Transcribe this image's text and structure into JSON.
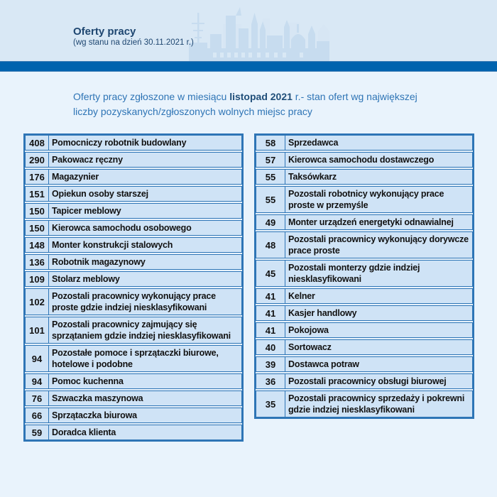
{
  "header": {
    "title": "Oferty pracy",
    "date_note": "(wg stanu na dzień 30.11.2021 r.)"
  },
  "intro": {
    "text_before": "Oferty pracy zgłoszone w miesiącu ",
    "text_bold": "listopad 2021",
    "text_after": " r.- stan ofert wg największej liczby pozyskanych/zgłoszonych wolnych miejsc pracy"
  },
  "tables": {
    "left": {
      "rows": [
        {
          "count": "408",
          "label": "Pomocniczy robotnik budowlany"
        },
        {
          "count": "290",
          "label": "Pakowacz ręczny"
        },
        {
          "count": "176",
          "label": "Magazynier"
        },
        {
          "count": "151",
          "label": "Opiekun osoby starszej"
        },
        {
          "count": "150",
          "label": "Tapicer meblowy"
        },
        {
          "count": "150",
          "label": "Kierowca samochodu osobowego"
        },
        {
          "count": "148",
          "label": "Monter konstrukcji stalowych"
        },
        {
          "count": "136",
          "label": "Robotnik magazynowy"
        },
        {
          "count": "109",
          "label": "Stolarz meblowy"
        },
        {
          "count": "102",
          "label": "Pozostali pracownicy wykonujący prace proste gdzie indziej niesklasyfikowani"
        },
        {
          "count": "101",
          "label": "Pozostali pracownicy zajmujący się sprzątaniem gdzie indziej niesklasyfikowani"
        },
        {
          "count": "94",
          "label": "Pozostałe pomoce i sprzątaczki biurowe, hotelowe i podobne"
        },
        {
          "count": "94",
          "label": "Pomoc kuchenna"
        },
        {
          "count": "76",
          "label": "Szwaczka maszynowa"
        },
        {
          "count": "66",
          "label": "Sprzątaczka biurowa"
        },
        {
          "count": "59",
          "label": "Doradca klienta"
        }
      ]
    },
    "right": {
      "rows": [
        {
          "count": "58",
          "label": "Sprzedawca"
        },
        {
          "count": "57",
          "label": "Kierowca samochodu dostawczego"
        },
        {
          "count": "55",
          "label": "Taksówkarz"
        },
        {
          "count": "55",
          "label": "Pozostali robotnicy wykonujący prace proste w przemyśle"
        },
        {
          "count": "49",
          "label": "Monter urządzeń energetyki odnawialnej"
        },
        {
          "count": "48",
          "label": "Pozostali pracownicy wykonujący dorywcze prace proste"
        },
        {
          "count": "45",
          "label": "Pozostali monterzy gdzie indziej niesklasyfikowani"
        },
        {
          "count": "41",
          "label": "Kelner"
        },
        {
          "count": "41",
          "label": "Kasjer handlowy"
        },
        {
          "count": "41",
          "label": "Pokojowa"
        },
        {
          "count": "40",
          "label": "Sortowacz"
        },
        {
          "count": "39",
          "label": "Dostawca potraw"
        },
        {
          "count": "36",
          "label": "Pozostali pracownicy obsługi biurowej"
        },
        {
          "count": "35",
          "label": "Pozostali pracownicy sprzedaży i pokrewni gdzie indziej niesklasyfikowani"
        }
      ]
    }
  },
  "colors": {
    "header_band_bg": "#d9e8f5",
    "body_bg": "#e9f3fc",
    "accent_bar": "#0063ae",
    "table_border": "#2e75b6",
    "cell_bg": "#cfe3f6",
    "title_text": "#1e4670",
    "intro_text": "#2e74b5",
    "intro_bold_text": "#1f4e79",
    "skyline_fill": "#c7dcef",
    "skyline_fill_light": "#d7e6f4"
  }
}
